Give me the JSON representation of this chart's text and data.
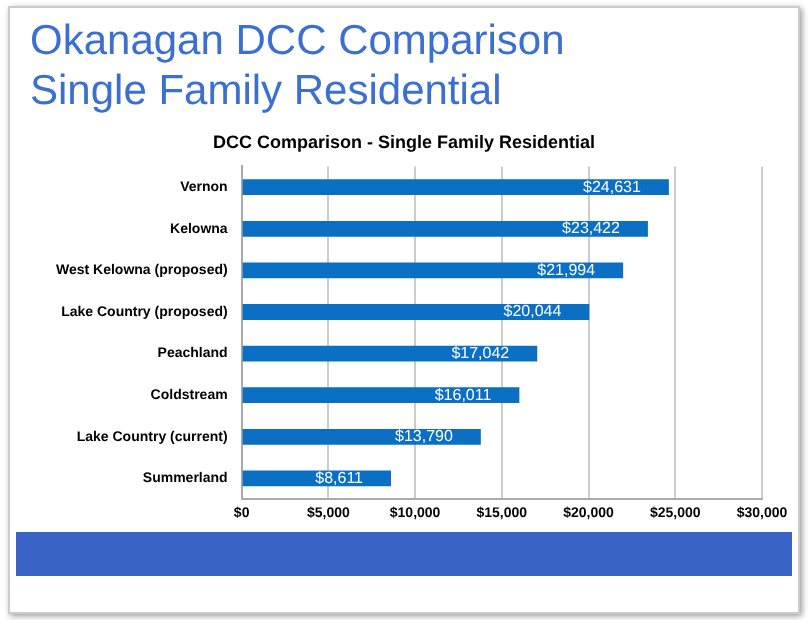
{
  "chart_data": {
    "type": "bar",
    "orientation": "horizontal",
    "title": "Okanagan DCC Comparison\nSingle Family Residential",
    "subtitle": "DCC Comparison - Single Family Residential",
    "categories": [
      "Vernon",
      "Kelowna",
      "West Kelowna (proposed)",
      "Lake Country (proposed)",
      "Peachland",
      "Coldstream",
      "Lake Country (current)",
      "Summerland"
    ],
    "values": [
      24631,
      23422,
      21994,
      20044,
      17042,
      16011,
      13790,
      8611
    ],
    "value_labels": [
      "$24,631",
      "$23,422",
      "$21,994",
      "$20,044",
      "$17,042",
      "$16,011",
      "$13,790",
      "$8,611"
    ],
    "color": "#0b6fc4",
    "xlim": [
      0,
      30000
    ],
    "xticks": [
      {
        "value": 0,
        "label": "$0"
      },
      {
        "value": 5000,
        "label": "$5,000"
      },
      {
        "value": 10000,
        "label": "$10,000"
      },
      {
        "value": 15000,
        "label": "$15,000"
      },
      {
        "value": 20000,
        "label": "$20,000"
      },
      {
        "value": 25000,
        "label": "$25,000"
      },
      {
        "value": 30000,
        "label": "$30,000"
      }
    ],
    "grid": "x",
    "legend": false
  }
}
